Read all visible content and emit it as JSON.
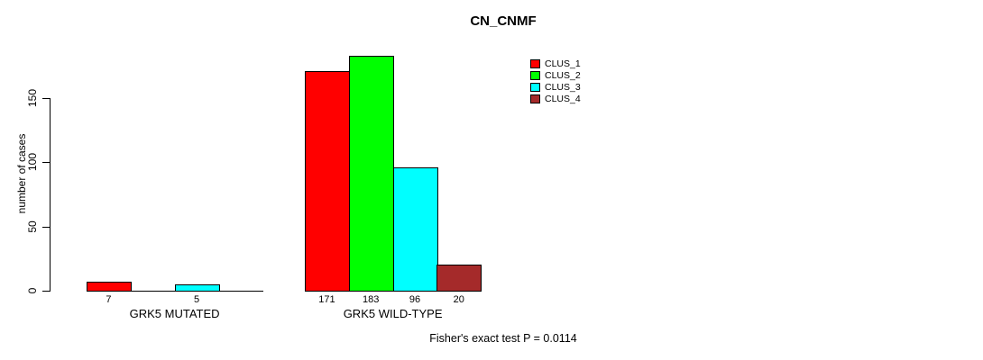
{
  "chart_data": {
    "type": "bar",
    "title": "CN_CNMF",
    "ylabel": "number of cases",
    "xlabel": "",
    "categories": [
      "GRK5 MUTATED",
      "GRK5 WILD-TYPE"
    ],
    "series": [
      {
        "name": "CLUS_1",
        "color": "#ff0000",
        "values": [
          7,
          171
        ]
      },
      {
        "name": "CLUS_2",
        "color": "#00ff00",
        "values": [
          0,
          183
        ]
      },
      {
        "name": "CLUS_3",
        "color": "#00ffff",
        "values": [
          5,
          96
        ]
      },
      {
        "name": "CLUS_4",
        "color": "#a52a2a",
        "values": [
          0,
          20
        ]
      }
    ],
    "bar_value_labels": [
      [
        7,
        null,
        5,
        null
      ],
      [
        171,
        183,
        96,
        20
      ]
    ],
    "yticks": [
      0,
      50,
      100,
      150
    ],
    "ylim": [
      0,
      187
    ],
    "grid": false,
    "legend_position": "top-right",
    "legend_entries": [
      "CLUS_1",
      "CLUS_2",
      "CLUS_3",
      "CLUS_4"
    ],
    "annotation": "Fisher's exact test P = 0.0114"
  }
}
